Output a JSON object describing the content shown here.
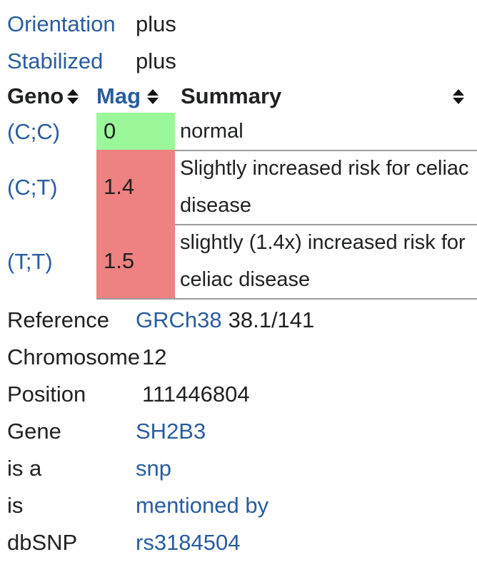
{
  "colors": {
    "link_blue": "#2a5c9e",
    "text": "#202122",
    "mag_green": "#9af79a",
    "mag_red": "#ee8181",
    "row_border": "#9c9c9c",
    "sort_icon": "#121212"
  },
  "top_rows": [
    {
      "label": "Orientation",
      "value": "plus"
    },
    {
      "label": "Stabilized",
      "value": "plus"
    }
  ],
  "table": {
    "headers": [
      {
        "label": "Geno"
      },
      {
        "label": "Mag"
      },
      {
        "label": "Summary"
      }
    ],
    "rows": [
      {
        "geno": "(C;C)",
        "mag": "0",
        "mag_color": "#9af79a",
        "summary": "normal"
      },
      {
        "geno": "(C;T)",
        "mag": "1.4",
        "mag_color": "#ee8181",
        "summary": "Slightly increased risk for celiac disease"
      },
      {
        "geno": "(T;T)",
        "mag": "1.5",
        "mag_color": "#ee8181",
        "summary": "slightly (1.4x) increased risk for celiac disease"
      }
    ]
  },
  "details": [
    {
      "label": "Reference",
      "link": "GRCh38",
      "text": "38.1/141"
    },
    {
      "label": "Chromosome",
      "text": "12"
    },
    {
      "label": "Position",
      "text": "111446804"
    },
    {
      "label": "Gene",
      "link": "SH2B3"
    },
    {
      "label": "is a",
      "link": "snp"
    },
    {
      "label": "is",
      "link": "mentioned by"
    },
    {
      "label": "dbSNP",
      "link": "rs3184504"
    }
  ]
}
